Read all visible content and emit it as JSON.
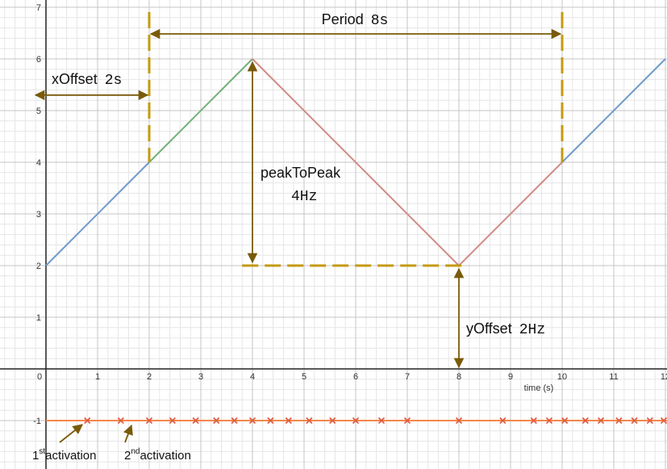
{
  "chart_data": {
    "type": "line",
    "title": "",
    "xlabel": "time (s)",
    "ylabel": "",
    "xlim": [
      0,
      12
    ],
    "ylim": [
      -1.7,
      7
    ],
    "grid": true,
    "x_ticks": [
      "0",
      "1",
      "2",
      "3",
      "4",
      "5",
      "6",
      "7",
      "8",
      "9",
      "10",
      "11",
      "12"
    ],
    "y_ticks": [
      "-1",
      "1",
      "2",
      "3",
      "4",
      "5",
      "6",
      "7"
    ],
    "series": [
      {
        "color": "#6f9bcc",
        "points": [
          [
            0,
            2
          ],
          [
            2,
            4
          ]
        ]
      },
      {
        "color": "#72b07a",
        "points": [
          [
            2,
            4
          ],
          [
            4,
            6
          ]
        ]
      },
      {
        "color": "#d08b86",
        "points": [
          [
            4,
            6
          ],
          [
            8,
            2
          ],
          [
            10,
            4
          ]
        ]
      },
      {
        "color": "#6f9bcc",
        "points": [
          [
            10,
            4
          ],
          [
            12,
            6
          ]
        ]
      }
    ],
    "activation_line": {
      "y": -1,
      "color": "#f5884a"
    },
    "activations": [
      0.8,
      1.45,
      2.0,
      2.45,
      2.9,
      3.3,
      3.65,
      4.0,
      4.35,
      4.7,
      5.1,
      5.55,
      6.0,
      6.5,
      7.0,
      8.0,
      8.85,
      9.45,
      9.75,
      10.05,
      10.45,
      10.75,
      11.1,
      11.4,
      11.7,
      12.0
    ],
    "marker_color": "#e05c42",
    "annotation_color": "#c49a10",
    "arrow_color": "#7a5a0a",
    "annotations": {
      "period": {
        "label": "Period",
        "value": "8s"
      },
      "x_offset": {
        "label": "xOffset",
        "value": "2s"
      },
      "peak_to_peak": {
        "label": "peakToPeak",
        "value": "4Hz"
      },
      "y_offset": {
        "label": "yOffset",
        "value": "2Hz"
      },
      "first_activation": {
        "num": "1",
        "sup": "st",
        "text": "activation"
      },
      "second_activation": {
        "num": "2",
        "sup": "nd",
        "text": "activation"
      }
    }
  }
}
